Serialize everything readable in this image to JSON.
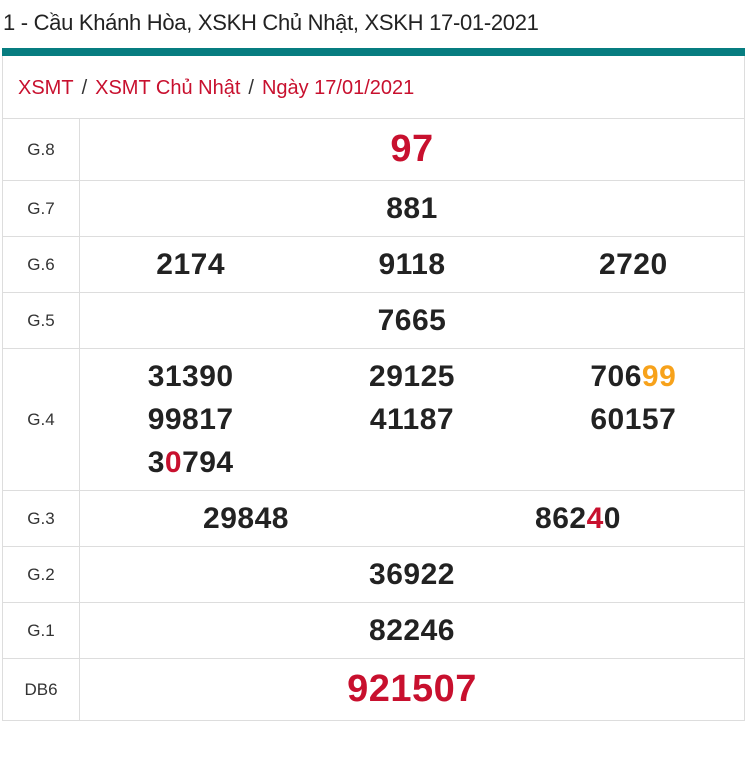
{
  "title": "1 - Cầu Khánh Hòa, XSKH Chủ Nhật, XSKH 17-01-2021",
  "breadcrumb": [
    {
      "label": "XSMT"
    },
    {
      "label": "XSMT Chủ Nhật"
    },
    {
      "label": "Ngày 17/01/2021"
    }
  ],
  "colors": {
    "accent_bar": "#077d80",
    "red": "#c8102e",
    "orange": "#f7a21b",
    "text": "#222222"
  },
  "prizes": [
    {
      "label": "G.8",
      "cols": 1,
      "big": true,
      "numbers": [
        [
          {
            "t": "97"
          }
        ]
      ]
    },
    {
      "label": "G.7",
      "cols": 1,
      "numbers": [
        [
          {
            "t": "881"
          }
        ]
      ]
    },
    {
      "label": "G.6",
      "cols": 3,
      "numbers": [
        [
          {
            "t": "2174"
          }
        ],
        [
          {
            "t": "9118"
          }
        ],
        [
          {
            "t": "2720"
          }
        ]
      ]
    },
    {
      "label": "G.5",
      "cols": 1,
      "numbers": [
        [
          {
            "t": "7665"
          }
        ]
      ]
    },
    {
      "label": "G.4",
      "cols": 3,
      "numbers": [
        [
          {
            "t": "31390"
          }
        ],
        [
          {
            "t": "29125"
          }
        ],
        [
          {
            "t": "706"
          },
          {
            "t": "99",
            "c": "orange"
          }
        ],
        [
          {
            "t": "99817"
          }
        ],
        [
          {
            "t": "41187"
          }
        ],
        [
          {
            "t": "60157"
          }
        ],
        [
          {
            "t": "3"
          },
          {
            "t": "0",
            "c": "red"
          },
          {
            "t": "794"
          }
        ]
      ]
    },
    {
      "label": "G.3",
      "cols": 2,
      "numbers": [
        [
          {
            "t": "29848"
          }
        ],
        [
          {
            "t": "862"
          },
          {
            "t": "4",
            "c": "red"
          },
          {
            "t": "0"
          }
        ]
      ]
    },
    {
      "label": "G.2",
      "cols": 1,
      "numbers": [
        [
          {
            "t": "36922"
          }
        ]
      ]
    },
    {
      "label": "G.1",
      "cols": 1,
      "numbers": [
        [
          {
            "t": "82246"
          }
        ]
      ]
    },
    {
      "label": "DB6",
      "cols": 1,
      "big": true,
      "numbers": [
        [
          {
            "t": "921507"
          }
        ]
      ]
    }
  ]
}
